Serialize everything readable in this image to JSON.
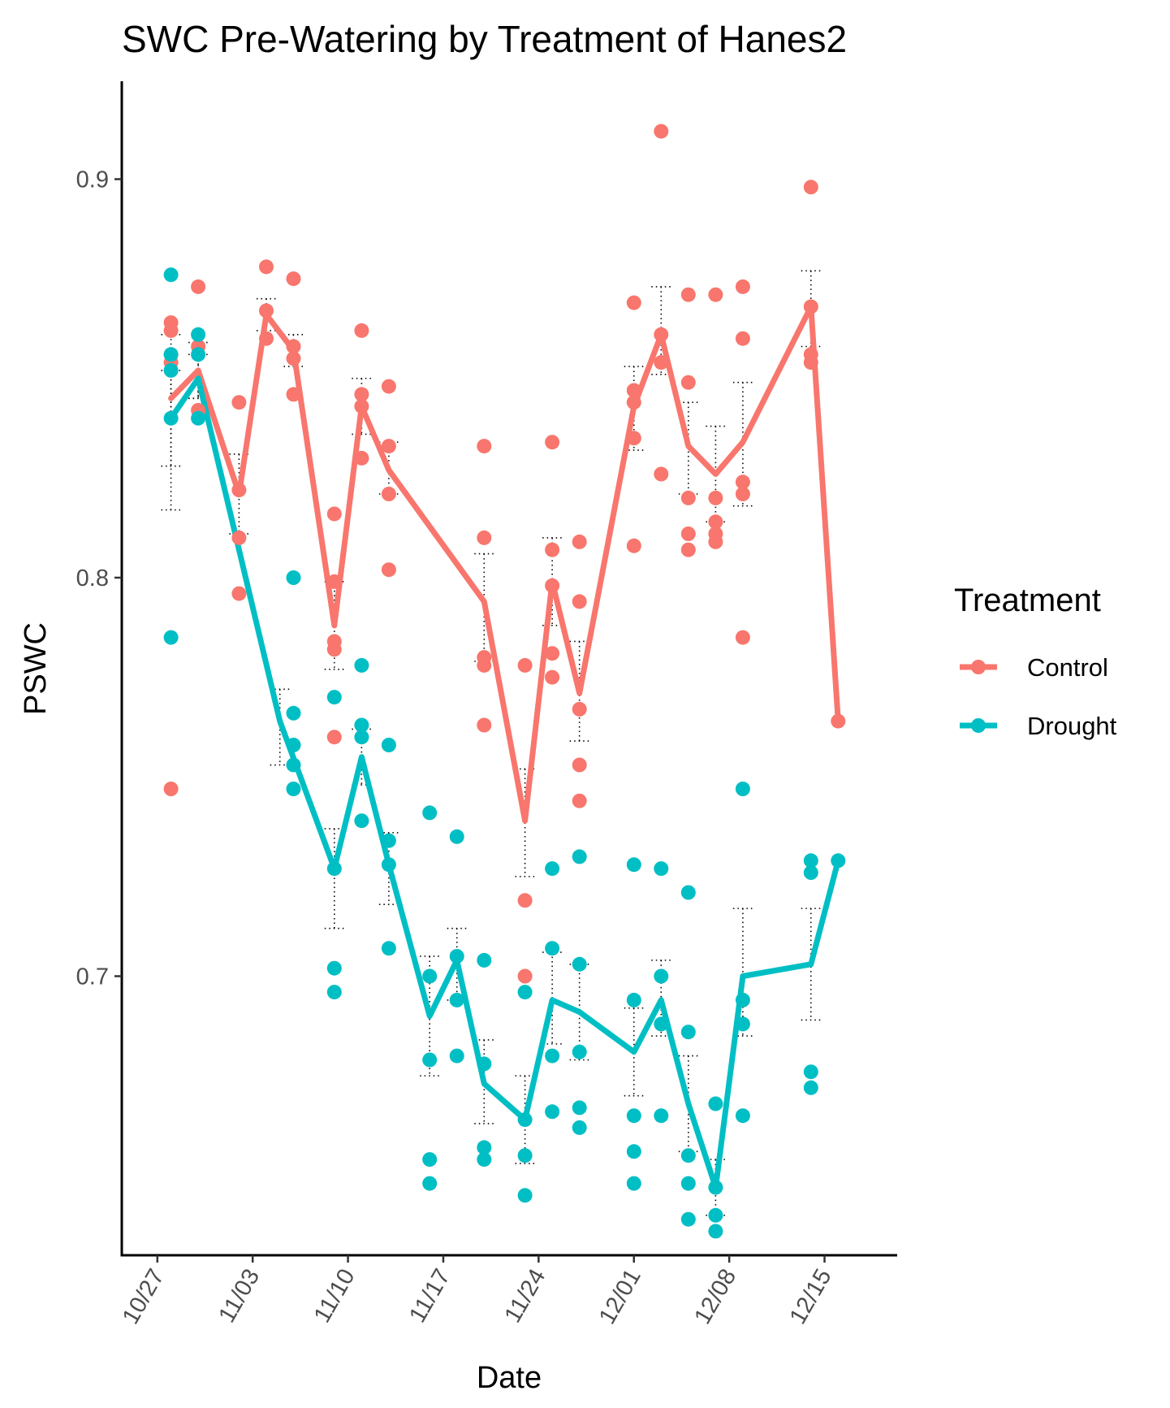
{
  "chart_data": {
    "type": "line",
    "title": "SWC Pre-Watering by Treatment of Hanes2",
    "xlabel": "Date",
    "ylabel": "PSWC",
    "x_ticks": [
      "10/27",
      "11/03",
      "11/10",
      "11/17",
      "11/24",
      "12/01",
      "12/08",
      "12/15"
    ],
    "y_ticks": [
      "0.7",
      "0.8",
      "0.9"
    ],
    "ylim": [
      0.631,
      0.925
    ],
    "xlim": [
      "10/25",
      "12/20"
    ],
    "legend": {
      "title": "Treatment",
      "position": "right"
    },
    "grid": false,
    "series": [
      {
        "name": "Control",
        "color": "#F8766D",
        "mean": [
          {
            "x": "10/28",
            "y": 0.845
          },
          {
            "x": "10/30",
            "y": 0.852
          },
          {
            "x": "11/02",
            "y": 0.821
          },
          {
            "x": "11/04",
            "y": 0.866
          },
          {
            "x": "11/06",
            "y": 0.857
          },
          {
            "x": "11/09",
            "y": 0.788
          },
          {
            "x": "11/11",
            "y": 0.843
          },
          {
            "x": "11/13",
            "y": 0.827
          },
          {
            "x": "11/20",
            "y": 0.794
          },
          {
            "x": "11/23",
            "y": 0.739
          },
          {
            "x": "11/25",
            "y": 0.799
          },
          {
            "x": "11/27",
            "y": 0.771
          },
          {
            "x": "12/01",
            "y": 0.843
          },
          {
            "x": "12/03",
            "y": 0.861
          },
          {
            "x": "12/05",
            "y": 0.833
          },
          {
            "x": "12/07",
            "y": 0.826
          },
          {
            "x": "12/09",
            "y": 0.834
          },
          {
            "x": "12/14",
            "y": 0.868
          },
          {
            "x": "12/16",
            "y": 0.764
          }
        ],
        "error": [
          {
            "x": "10/28",
            "lo": 0.817,
            "hi": 0.861
          },
          {
            "x": "10/30",
            "lo": 0.845,
            "hi": 0.859
          },
          {
            "x": "11/02",
            "lo": 0.811,
            "hi": 0.831
          },
          {
            "x": "11/04",
            "lo": 0.862,
            "hi": 0.87
          },
          {
            "x": "11/06",
            "lo": 0.853,
            "hi": 0.861
          },
          {
            "x": "11/09",
            "lo": 0.777,
            "hi": 0.799
          },
          {
            "x": "11/11",
            "lo": 0.836,
            "hi": 0.85
          },
          {
            "x": "11/13",
            "lo": 0.821,
            "hi": 0.834
          },
          {
            "x": "11/20",
            "lo": 0.779,
            "hi": 0.806
          },
          {
            "x": "11/23",
            "lo": 0.725,
            "hi": 0.752
          },
          {
            "x": "11/25",
            "lo": 0.788,
            "hi": 0.81
          },
          {
            "x": "11/27",
            "lo": 0.759,
            "hi": 0.784
          },
          {
            "x": "12/01",
            "lo": 0.832,
            "hi": 0.853
          },
          {
            "x": "12/03",
            "lo": 0.851,
            "hi": 0.873
          },
          {
            "x": "12/05",
            "lo": 0.821,
            "hi": 0.844
          },
          {
            "x": "12/07",
            "lo": 0.814,
            "hi": 0.838
          },
          {
            "x": "12/09",
            "lo": 0.818,
            "hi": 0.849
          },
          {
            "x": "12/14",
            "lo": 0.858,
            "hi": 0.877
          }
        ],
        "points": [
          {
            "x": "10/28",
            "y": 0.864
          },
          {
            "x": "10/28",
            "y": 0.862
          },
          {
            "x": "10/28",
            "y": 0.856
          },
          {
            "x": "10/28",
            "y": 0.854
          },
          {
            "x": "10/28",
            "y": 0.747
          },
          {
            "x": "10/30",
            "y": 0.873
          },
          {
            "x": "10/30",
            "y": 0.858
          },
          {
            "x": "10/30",
            "y": 0.842
          },
          {
            "x": "11/02",
            "y": 0.844
          },
          {
            "x": "11/02",
            "y": 0.822
          },
          {
            "x": "11/02",
            "y": 0.81
          },
          {
            "x": "11/02",
            "y": 0.796
          },
          {
            "x": "11/04",
            "y": 0.878
          },
          {
            "x": "11/04",
            "y": 0.867
          },
          {
            "x": "11/04",
            "y": 0.86
          },
          {
            "x": "11/06",
            "y": 0.875
          },
          {
            "x": "11/06",
            "y": 0.858
          },
          {
            "x": "11/06",
            "y": 0.855
          },
          {
            "x": "11/06",
            "y": 0.846
          },
          {
            "x": "11/09",
            "y": 0.816
          },
          {
            "x": "11/09",
            "y": 0.799
          },
          {
            "x": "11/09",
            "y": 0.784
          },
          {
            "x": "11/09",
            "y": 0.782
          },
          {
            "x": "11/09",
            "y": 0.76
          },
          {
            "x": "11/11",
            "y": 0.862
          },
          {
            "x": "11/11",
            "y": 0.846
          },
          {
            "x": "11/11",
            "y": 0.843
          },
          {
            "x": "11/11",
            "y": 0.83
          },
          {
            "x": "11/13",
            "y": 0.848
          },
          {
            "x": "11/13",
            "y": 0.833
          },
          {
            "x": "11/13",
            "y": 0.821
          },
          {
            "x": "11/13",
            "y": 0.802
          },
          {
            "x": "11/20",
            "y": 0.833
          },
          {
            "x": "11/20",
            "y": 0.81
          },
          {
            "x": "11/20",
            "y": 0.78
          },
          {
            "x": "11/20",
            "y": 0.778
          },
          {
            "x": "11/20",
            "y": 0.763
          },
          {
            "x": "11/23",
            "y": 0.778
          },
          {
            "x": "11/23",
            "y": 0.719
          },
          {
            "x": "11/23",
            "y": 0.7
          },
          {
            "x": "11/25",
            "y": 0.834
          },
          {
            "x": "11/25",
            "y": 0.807
          },
          {
            "x": "11/25",
            "y": 0.798
          },
          {
            "x": "11/25",
            "y": 0.781
          },
          {
            "x": "11/25",
            "y": 0.775
          },
          {
            "x": "11/27",
            "y": 0.809
          },
          {
            "x": "11/27",
            "y": 0.794
          },
          {
            "x": "11/27",
            "y": 0.767
          },
          {
            "x": "11/27",
            "y": 0.753
          },
          {
            "x": "11/27",
            "y": 0.744
          },
          {
            "x": "12/01",
            "y": 0.869
          },
          {
            "x": "12/01",
            "y": 0.847
          },
          {
            "x": "12/01",
            "y": 0.844
          },
          {
            "x": "12/01",
            "y": 0.835
          },
          {
            "x": "12/01",
            "y": 0.808
          },
          {
            "x": "12/03",
            "y": 0.912
          },
          {
            "x": "12/03",
            "y": 0.861
          },
          {
            "x": "12/03",
            "y": 0.854
          },
          {
            "x": "12/03",
            "y": 0.826
          },
          {
            "x": "12/05",
            "y": 0.871
          },
          {
            "x": "12/05",
            "y": 0.849
          },
          {
            "x": "12/05",
            "y": 0.82
          },
          {
            "x": "12/05",
            "y": 0.811
          },
          {
            "x": "12/05",
            "y": 0.807
          },
          {
            "x": "12/07",
            "y": 0.871
          },
          {
            "x": "12/07",
            "y": 0.82
          },
          {
            "x": "12/07",
            "y": 0.814
          },
          {
            "x": "12/07",
            "y": 0.811
          },
          {
            "x": "12/07",
            "y": 0.809
          },
          {
            "x": "12/09",
            "y": 0.873
          },
          {
            "x": "12/09",
            "y": 0.86
          },
          {
            "x": "12/09",
            "y": 0.824
          },
          {
            "x": "12/09",
            "y": 0.821
          },
          {
            "x": "12/09",
            "y": 0.785
          },
          {
            "x": "12/14",
            "y": 0.898
          },
          {
            "x": "12/14",
            "y": 0.868
          },
          {
            "x": "12/14",
            "y": 0.856
          },
          {
            "x": "12/14",
            "y": 0.854
          },
          {
            "x": "12/16",
            "y": 0.764
          }
        ]
      },
      {
        "name": "Drought",
        "color": "#00BFC4",
        "mean": [
          {
            "x": "10/28",
            "y": 0.84
          },
          {
            "x": "10/30",
            "y": 0.85
          },
          {
            "x": "11/05",
            "y": 0.764
          },
          {
            "x": "11/09",
            "y": 0.727
          },
          {
            "x": "11/11",
            "y": 0.755
          },
          {
            "x": "11/13",
            "y": 0.728
          },
          {
            "x": "11/16",
            "y": 0.69
          },
          {
            "x": "11/18",
            "y": 0.704
          },
          {
            "x": "11/20",
            "y": 0.673
          },
          {
            "x": "11/23",
            "y": 0.664
          },
          {
            "x": "11/25",
            "y": 0.694
          },
          {
            "x": "11/27",
            "y": 0.691
          },
          {
            "x": "12/01",
            "y": 0.681
          },
          {
            "x": "12/03",
            "y": 0.694
          },
          {
            "x": "12/05",
            "y": 0.668
          },
          {
            "x": "12/07",
            "y": 0.647
          },
          {
            "x": "12/09",
            "y": 0.7
          },
          {
            "x": "12/14",
            "y": 0.703
          },
          {
            "x": "12/16",
            "y": 0.729
          }
        ],
        "error": [
          {
            "x": "10/28",
            "lo": 0.828,
            "hi": 0.852
          },
          {
            "x": "10/30",
            "lo": 0.845,
            "hi": 0.856
          },
          {
            "x": "11/05",
            "lo": 0.753,
            "hi": 0.772
          },
          {
            "x": "11/09",
            "lo": 0.712,
            "hi": 0.737
          },
          {
            "x": "11/11",
            "lo": 0.748,
            "hi": 0.762
          },
          {
            "x": "11/13",
            "lo": 0.718,
            "hi": 0.736
          },
          {
            "x": "11/16",
            "lo": 0.675,
            "hi": 0.705
          },
          {
            "x": "11/18",
            "lo": 0.694,
            "hi": 0.712
          },
          {
            "x": "11/20",
            "lo": 0.663,
            "hi": 0.684
          },
          {
            "x": "11/23",
            "lo": 0.653,
            "hi": 0.675
          },
          {
            "x": "11/25",
            "lo": 0.683,
            "hi": 0.706
          },
          {
            "x": "11/27",
            "lo": 0.679,
            "hi": 0.703
          },
          {
            "x": "12/01",
            "lo": 0.67,
            "hi": 0.692
          },
          {
            "x": "12/03",
            "lo": 0.685,
            "hi": 0.704
          },
          {
            "x": "12/05",
            "lo": 0.656,
            "hi": 0.68
          },
          {
            "x": "12/07",
            "lo": 0.64,
            "hi": 0.654
          },
          {
            "x": "12/09",
            "lo": 0.685,
            "hi": 0.717
          },
          {
            "x": "12/14",
            "lo": 0.689,
            "hi": 0.717
          }
        ],
        "points": [
          {
            "x": "10/28",
            "y": 0.876
          },
          {
            "x": "10/28",
            "y": 0.856
          },
          {
            "x": "10/28",
            "y": 0.852
          },
          {
            "x": "10/28",
            "y": 0.84
          },
          {
            "x": "10/28",
            "y": 0.785
          },
          {
            "x": "10/30",
            "y": 0.861
          },
          {
            "x": "10/30",
            "y": 0.856
          },
          {
            "x": "10/30",
            "y": 0.84
          },
          {
            "x": "11/06",
            "y": 0.8
          },
          {
            "x": "11/06",
            "y": 0.766
          },
          {
            "x": "11/06",
            "y": 0.758
          },
          {
            "x": "11/06",
            "y": 0.753
          },
          {
            "x": "11/06",
            "y": 0.747
          },
          {
            "x": "11/09",
            "y": 0.77
          },
          {
            "x": "11/09",
            "y": 0.727
          },
          {
            "x": "11/09",
            "y": 0.702
          },
          {
            "x": "11/09",
            "y": 0.696
          },
          {
            "x": "11/11",
            "y": 0.778
          },
          {
            "x": "11/11",
            "y": 0.763
          },
          {
            "x": "11/11",
            "y": 0.76
          },
          {
            "x": "11/11",
            "y": 0.739
          },
          {
            "x": "11/13",
            "y": 0.758
          },
          {
            "x": "11/13",
            "y": 0.734
          },
          {
            "x": "11/13",
            "y": 0.728
          },
          {
            "x": "11/13",
            "y": 0.707
          },
          {
            "x": "11/16",
            "y": 0.741
          },
          {
            "x": "11/16",
            "y": 0.7
          },
          {
            "x": "11/16",
            "y": 0.679
          },
          {
            "x": "11/16",
            "y": 0.654
          },
          {
            "x": "11/16",
            "y": 0.648
          },
          {
            "x": "11/18",
            "y": 0.735
          },
          {
            "x": "11/18",
            "y": 0.705
          },
          {
            "x": "11/18",
            "y": 0.694
          },
          {
            "x": "11/18",
            "y": 0.68
          },
          {
            "x": "11/20",
            "y": 0.704
          },
          {
            "x": "11/20",
            "y": 0.678
          },
          {
            "x": "11/20",
            "y": 0.657
          },
          {
            "x": "11/20",
            "y": 0.654
          },
          {
            "x": "11/23",
            "y": 0.696
          },
          {
            "x": "11/23",
            "y": 0.664
          },
          {
            "x": "11/23",
            "y": 0.655
          },
          {
            "x": "11/23",
            "y": 0.645
          },
          {
            "x": "11/25",
            "y": 0.727
          },
          {
            "x": "11/25",
            "y": 0.707
          },
          {
            "x": "11/25",
            "y": 0.68
          },
          {
            "x": "11/25",
            "y": 0.666
          },
          {
            "x": "11/27",
            "y": 0.73
          },
          {
            "x": "11/27",
            "y": 0.703
          },
          {
            "x": "11/27",
            "y": 0.681
          },
          {
            "x": "11/27",
            "y": 0.667
          },
          {
            "x": "11/27",
            "y": 0.662
          },
          {
            "x": "12/01",
            "y": 0.728
          },
          {
            "x": "12/01",
            "y": 0.694
          },
          {
            "x": "12/01",
            "y": 0.665
          },
          {
            "x": "12/01",
            "y": 0.656
          },
          {
            "x": "12/01",
            "y": 0.648
          },
          {
            "x": "12/03",
            "y": 0.727
          },
          {
            "x": "12/03",
            "y": 0.7
          },
          {
            "x": "12/03",
            "y": 0.688
          },
          {
            "x": "12/03",
            "y": 0.665
          },
          {
            "x": "12/05",
            "y": 0.721
          },
          {
            "x": "12/05",
            "y": 0.686
          },
          {
            "x": "12/05",
            "y": 0.655
          },
          {
            "x": "12/05",
            "y": 0.648
          },
          {
            "x": "12/05",
            "y": 0.639
          },
          {
            "x": "12/07",
            "y": 0.668
          },
          {
            "x": "12/07",
            "y": 0.647
          },
          {
            "x": "12/07",
            "y": 0.64
          },
          {
            "x": "12/07",
            "y": 0.636
          },
          {
            "x": "12/09",
            "y": 0.747
          },
          {
            "x": "12/09",
            "y": 0.694
          },
          {
            "x": "12/09",
            "y": 0.688
          },
          {
            "x": "12/09",
            "y": 0.665
          },
          {
            "x": "12/14",
            "y": 0.729
          },
          {
            "x": "12/14",
            "y": 0.726
          },
          {
            "x": "12/14",
            "y": 0.676
          },
          {
            "x": "12/14",
            "y": 0.672
          },
          {
            "x": "12/16",
            "y": 0.729
          }
        ]
      }
    ]
  }
}
